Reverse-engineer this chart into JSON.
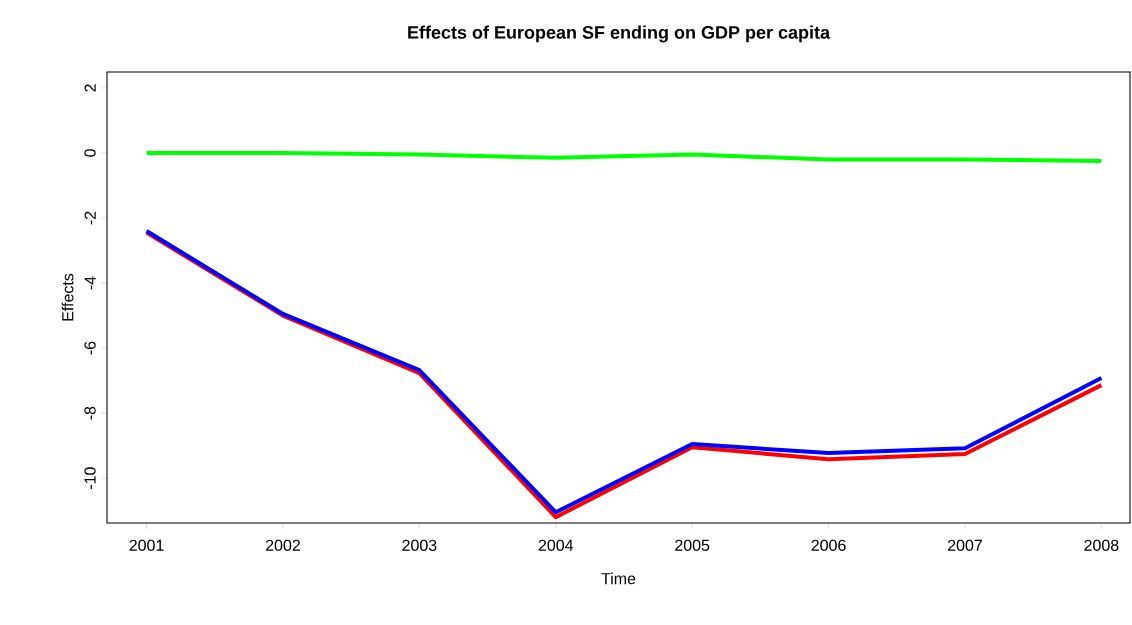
{
  "chart_data": {
    "type": "line",
    "title": "Effects of European SF ending on GDP per capita",
    "xlabel": "Time",
    "ylabel": "Effects",
    "x": [
      2001,
      2002,
      2003,
      2004,
      2005,
      2006,
      2007,
      2008
    ],
    "series": [
      {
        "color": "#00ff00",
        "values": [
          0,
          0,
          -0.05,
          -0.15,
          -0.05,
          -0.2,
          -0.2,
          -0.25
        ]
      },
      {
        "color": "#ff0000",
        "values": [
          -2.45,
          -5.0,
          -6.77,
          -11.2,
          -9.05,
          -9.42,
          -9.26,
          -7.14
        ]
      },
      {
        "color": "#0000ff",
        "values": [
          -2.4,
          -4.95,
          -6.68,
          -11.05,
          -8.95,
          -9.23,
          -9.08,
          -6.92
        ]
      }
    ],
    "xlim": [
      2000.71,
      2008.21
    ],
    "ylim": [
      -11.38,
      2.49
    ],
    "xticks": [
      2001,
      2002,
      2003,
      2004,
      2005,
      2006,
      2007,
      2008
    ],
    "yticks": [
      -10,
      -8,
      -6,
      -4,
      -2,
      0,
      2
    ],
    "grid": false,
    "marker": "none",
    "line_style": "solid"
  }
}
